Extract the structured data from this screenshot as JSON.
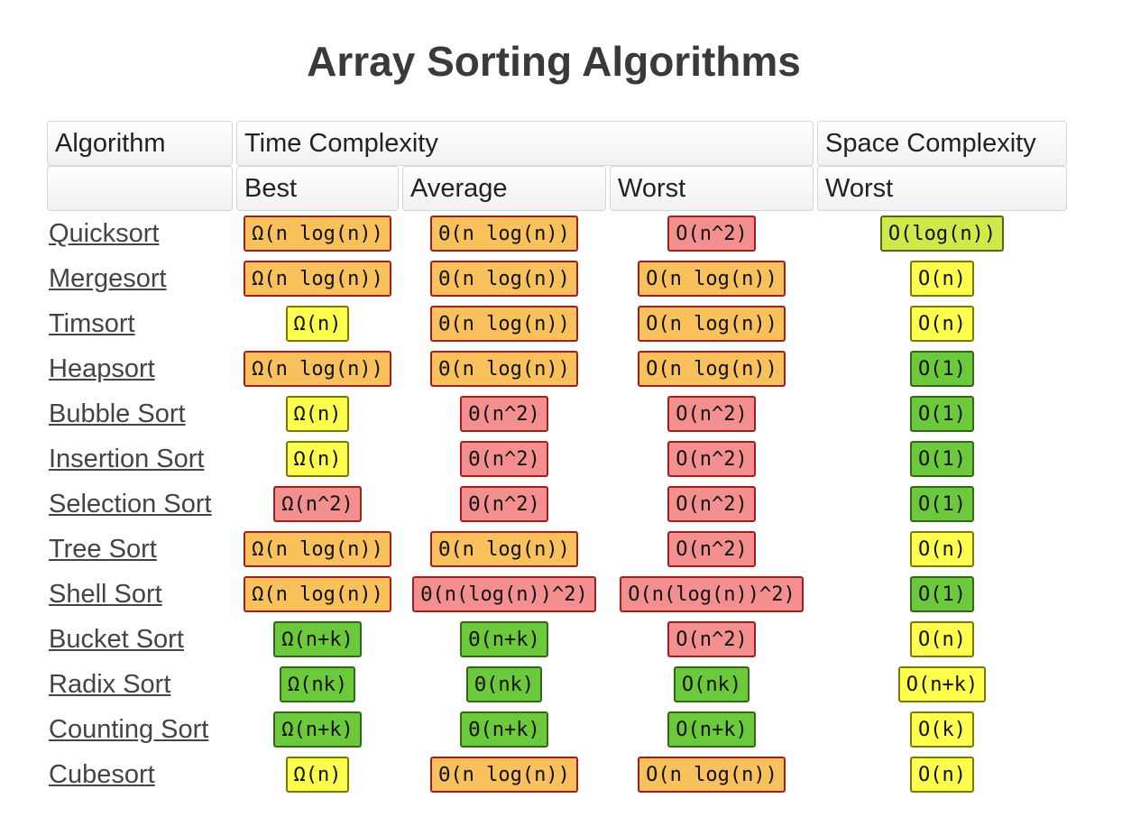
{
  "title": "Array Sorting Algorithms",
  "colors": {
    "orange": "#f8c15c",
    "red": "#f38f8f",
    "yellow": "#ffff4d",
    "green": "#6cc93b",
    "lime": "#cfe84a"
  },
  "headers": {
    "algorithm": "Algorithm",
    "time_complexity": "Time Complexity",
    "space_complexity": "Space Complexity",
    "best": "Best",
    "average": "Average",
    "worst": "Worst",
    "space_worst": "Worst"
  },
  "rows": [
    {
      "name": "Quicksort",
      "best": {
        "text": "Ω(n log(n))",
        "color": "orange"
      },
      "average": {
        "text": "Θ(n log(n))",
        "color": "orange"
      },
      "worst": {
        "text": "O(n^2)",
        "color": "red"
      },
      "space": {
        "text": "O(log(n))",
        "color": "lime"
      }
    },
    {
      "name": "Mergesort",
      "best": {
        "text": "Ω(n log(n))",
        "color": "orange"
      },
      "average": {
        "text": "Θ(n log(n))",
        "color": "orange"
      },
      "worst": {
        "text": "O(n log(n))",
        "color": "orange"
      },
      "space": {
        "text": "O(n)",
        "color": "yellow"
      }
    },
    {
      "name": "Timsort",
      "best": {
        "text": "Ω(n)",
        "color": "yellow"
      },
      "average": {
        "text": "Θ(n log(n))",
        "color": "orange"
      },
      "worst": {
        "text": "O(n log(n))",
        "color": "orange"
      },
      "space": {
        "text": "O(n)",
        "color": "yellow"
      }
    },
    {
      "name": "Heapsort",
      "best": {
        "text": "Ω(n log(n))",
        "color": "orange"
      },
      "average": {
        "text": "Θ(n log(n))",
        "color": "orange"
      },
      "worst": {
        "text": "O(n log(n))",
        "color": "orange"
      },
      "space": {
        "text": "O(1)",
        "color": "green"
      }
    },
    {
      "name": "Bubble Sort",
      "best": {
        "text": "Ω(n)",
        "color": "yellow"
      },
      "average": {
        "text": "Θ(n^2)",
        "color": "red"
      },
      "worst": {
        "text": "O(n^2)",
        "color": "red"
      },
      "space": {
        "text": "O(1)",
        "color": "green"
      }
    },
    {
      "name": "Insertion Sort",
      "best": {
        "text": "Ω(n)",
        "color": "yellow"
      },
      "average": {
        "text": "Θ(n^2)",
        "color": "red"
      },
      "worst": {
        "text": "O(n^2)",
        "color": "red"
      },
      "space": {
        "text": "O(1)",
        "color": "green"
      }
    },
    {
      "name": "Selection Sort",
      "best": {
        "text": "Ω(n^2)",
        "color": "red"
      },
      "average": {
        "text": "Θ(n^2)",
        "color": "red"
      },
      "worst": {
        "text": "O(n^2)",
        "color": "red"
      },
      "space": {
        "text": "O(1)",
        "color": "green"
      }
    },
    {
      "name": "Tree Sort",
      "best": {
        "text": "Ω(n log(n))",
        "color": "orange"
      },
      "average": {
        "text": "Θ(n log(n))",
        "color": "orange"
      },
      "worst": {
        "text": "O(n^2)",
        "color": "red"
      },
      "space": {
        "text": "O(n)",
        "color": "yellow"
      }
    },
    {
      "name": "Shell Sort",
      "best": {
        "text": "Ω(n log(n))",
        "color": "orange"
      },
      "average": {
        "text": "Θ(n(log(n))^2)",
        "color": "red"
      },
      "worst": {
        "text": "O(n(log(n))^2)",
        "color": "red"
      },
      "space": {
        "text": "O(1)",
        "color": "green"
      }
    },
    {
      "name": "Bucket Sort",
      "best": {
        "text": "Ω(n+k)",
        "color": "green"
      },
      "average": {
        "text": "Θ(n+k)",
        "color": "green"
      },
      "worst": {
        "text": "O(n^2)",
        "color": "red"
      },
      "space": {
        "text": "O(n)",
        "color": "yellow"
      }
    },
    {
      "name": "Radix Sort",
      "best": {
        "text": "Ω(nk)",
        "color": "green"
      },
      "average": {
        "text": "Θ(nk)",
        "color": "green"
      },
      "worst": {
        "text": "O(nk)",
        "color": "green"
      },
      "space": {
        "text": "O(n+k)",
        "color": "yellow"
      }
    },
    {
      "name": "Counting Sort",
      "best": {
        "text": "Ω(n+k)",
        "color": "green"
      },
      "average": {
        "text": "Θ(n+k)",
        "color": "green"
      },
      "worst": {
        "text": "O(n+k)",
        "color": "green"
      },
      "space": {
        "text": "O(k)",
        "color": "yellow"
      }
    },
    {
      "name": "Cubesort",
      "best": {
        "text": "Ω(n)",
        "color": "yellow"
      },
      "average": {
        "text": "Θ(n log(n))",
        "color": "orange"
      },
      "worst": {
        "text": "O(n log(n))",
        "color": "orange"
      },
      "space": {
        "text": "O(n)",
        "color": "yellow"
      }
    }
  ]
}
